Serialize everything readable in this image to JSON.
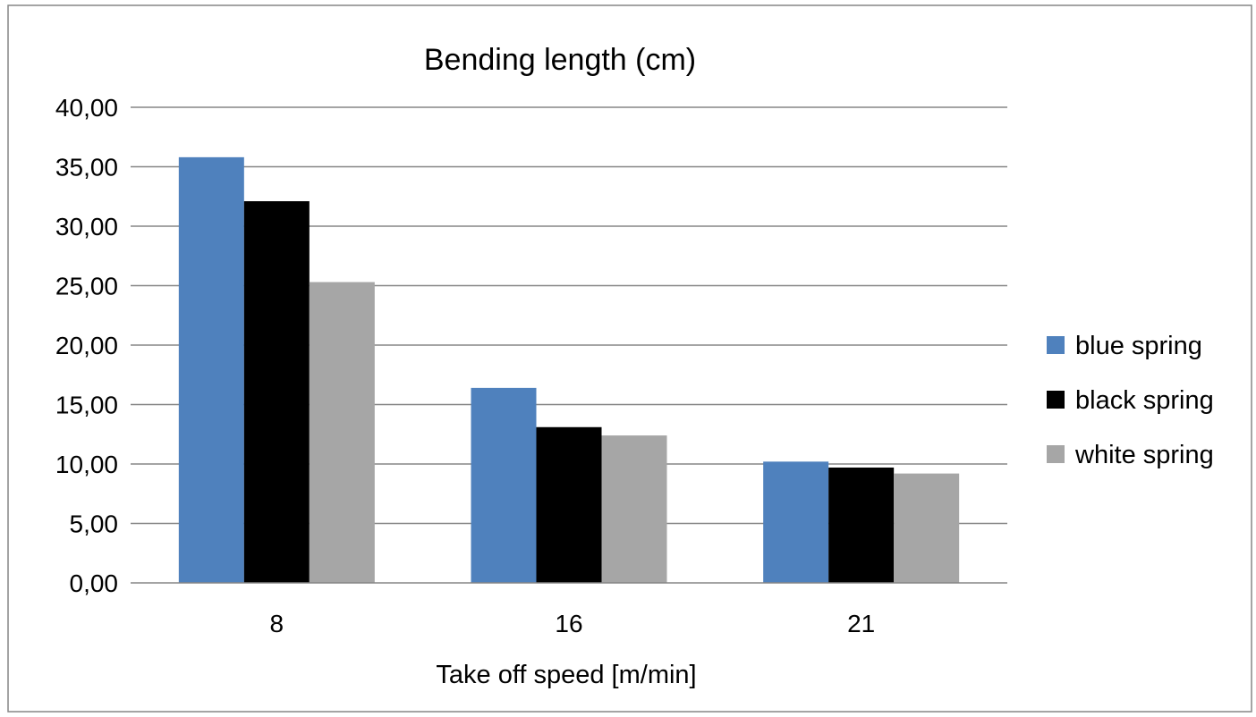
{
  "chart_data": {
    "type": "bar",
    "title": "Bending length (cm)",
    "xlabel": "Take off speed [m/min]",
    "ylabel": "",
    "categories": [
      "8",
      "16",
      "21"
    ],
    "series": [
      {
        "name": "blue spring",
        "color": "#4F81BD",
        "values": [
          35.8,
          16.4,
          10.2
        ]
      },
      {
        "name": "black spring",
        "color": "#000000",
        "values": [
          32.1,
          13.1,
          9.7
        ]
      },
      {
        "name": "white spring",
        "color": "#A6A6A6",
        "values": [
          25.3,
          12.4,
          9.2
        ]
      }
    ],
    "ylim": [
      0,
      40
    ],
    "yticks": [
      0,
      5,
      10,
      15,
      20,
      25,
      30,
      35,
      40
    ],
    "ytick_labels": [
      "0,00",
      "5,00",
      "10,00",
      "15,00",
      "20,00",
      "25,00",
      "30,00",
      "35,00",
      "40,00"
    ],
    "grid": true,
    "gridline_color": "#868686",
    "legend_position": "right"
  }
}
